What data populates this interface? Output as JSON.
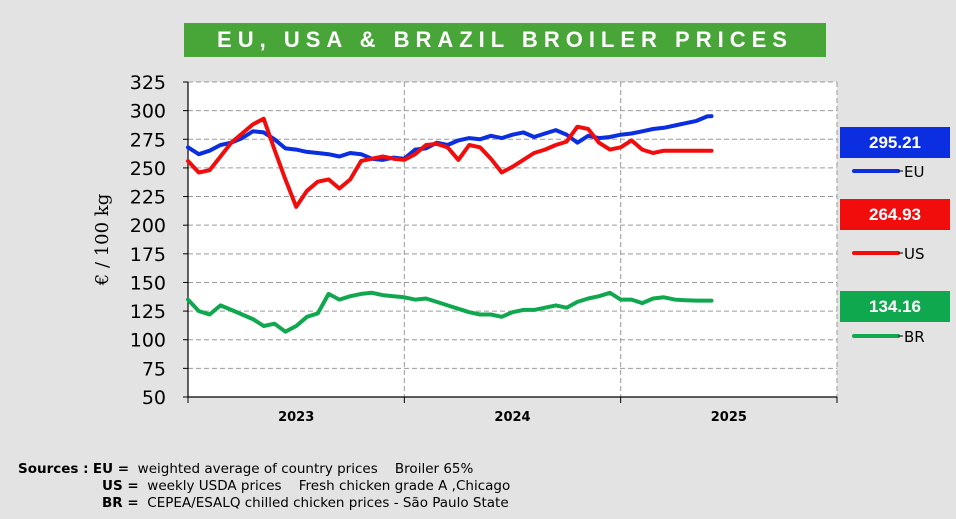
{
  "title": "EU, USA & BRAZIL BROILER PRICES",
  "colors": {
    "eu": "#0a2ee0",
    "us": "#f20d0d",
    "br": "#10a84e",
    "title_bg": "#48a638"
  },
  "badges": [
    {
      "key": "eu",
      "value": "295.21",
      "legend": "EU",
      "color": "#0a2ee0"
    },
    {
      "key": "us",
      "value": "264.93",
      "legend": "US",
      "color": "#f20d0d"
    },
    {
      "key": "br",
      "value": "134.16",
      "legend": "BR",
      "color": "#10a84e"
    }
  ],
  "sources": {
    "label": "Sources :",
    "rows": [
      {
        "key": "EU =",
        "text": "weighted average of country prices    Broiler 65%"
      },
      {
        "key": "US =",
        "text": "weekly USDA prices    Fresh chicken grade A ,Chicago"
      },
      {
        "key": "BR =",
        "text": "CEPEA/ESALQ chilled chicken prices - São Paulo State"
      }
    ]
  },
  "chart_data": {
    "type": "line",
    "ylabel": "€ / 100 kg",
    "ylim": [
      50,
      325
    ],
    "yticks": [
      50,
      75,
      100,
      125,
      150,
      175,
      200,
      225,
      250,
      275,
      300,
      325
    ],
    "xlim": [
      2022.5,
      2025.5
    ],
    "xticks": [
      2023,
      2024,
      2025
    ],
    "xtick_labels": [
      "2023",
      "2024",
      "2025"
    ],
    "year_dividers": [
      2023.5,
      2024.5
    ],
    "grid": true,
    "series": [
      {
        "name": "EU",
        "color": "#0a2ee0",
        "x": [
          2022.5,
          2022.55,
          2022.6,
          2022.65,
          2022.7,
          2022.75,
          2022.8,
          2022.85,
          2022.9,
          2022.95,
          2023.0,
          2023.05,
          2023.1,
          2023.15,
          2023.2,
          2023.25,
          2023.3,
          2023.35,
          2023.4,
          2023.45,
          2023.5,
          2023.55,
          2023.6,
          2023.65,
          2023.7,
          2023.75,
          2023.8,
          2023.85,
          2023.9,
          2023.95,
          2024.0,
          2024.05,
          2024.1,
          2024.15,
          2024.2,
          2024.25,
          2024.3,
          2024.35,
          2024.4,
          2024.45,
          2024.5,
          2024.55,
          2024.6,
          2024.65,
          2024.7,
          2024.75,
          2024.8,
          2024.85,
          2024.9,
          2024.92
        ],
        "y": [
          268,
          262,
          265,
          270,
          272,
          276,
          282,
          281,
          275,
          267,
          266,
          264,
          263,
          262,
          260,
          263,
          262,
          258,
          257,
          259,
          258,
          266,
          267,
          272,
          270,
          274,
          276,
          275,
          278,
          276,
          279,
          281,
          277,
          280,
          283,
          279,
          272,
          278,
          276,
          277,
          279,
          280,
          282,
          284,
          285,
          287,
          289,
          291,
          295,
          295.2
        ]
      },
      {
        "name": "US",
        "color": "#f20d0d",
        "x": [
          2022.5,
          2022.55,
          2022.6,
          2022.65,
          2022.7,
          2022.75,
          2022.8,
          2022.85,
          2022.9,
          2022.95,
          2023.0,
          2023.05,
          2023.1,
          2023.15,
          2023.2,
          2023.25,
          2023.3,
          2023.35,
          2023.4,
          2023.45,
          2023.5,
          2023.55,
          2023.6,
          2023.65,
          2023.7,
          2023.75,
          2023.8,
          2023.85,
          2023.9,
          2023.95,
          2024.0,
          2024.05,
          2024.1,
          2024.15,
          2024.2,
          2024.25,
          2024.3,
          2024.35,
          2024.4,
          2024.45,
          2024.5,
          2024.55,
          2024.6,
          2024.65,
          2024.7,
          2024.75,
          2024.8,
          2024.85,
          2024.9,
          2024.92
        ],
        "y": [
          256,
          246,
          248,
          260,
          272,
          280,
          288,
          293,
          266,
          240,
          216,
          230,
          238,
          240,
          232,
          240,
          256,
          258,
          260,
          258,
          257,
          262,
          270,
          271,
          268,
          257,
          270,
          268,
          258,
          246,
          251,
          257,
          263,
          266,
          270,
          273,
          286,
          284,
          272,
          266,
          268,
          274,
          266,
          263,
          265,
          264.9,
          264.9,
          264.9,
          264.9,
          264.93
        ]
      },
      {
        "name": "BR",
        "color": "#10a84e",
        "x": [
          2022.5,
          2022.55,
          2022.6,
          2022.65,
          2022.7,
          2022.75,
          2022.8,
          2022.85,
          2022.9,
          2022.95,
          2023.0,
          2023.05,
          2023.1,
          2023.15,
          2023.2,
          2023.25,
          2023.3,
          2023.35,
          2023.4,
          2023.45,
          2023.5,
          2023.55,
          2023.6,
          2023.65,
          2023.7,
          2023.75,
          2023.8,
          2023.85,
          2023.9,
          2023.95,
          2024.0,
          2024.05,
          2024.1,
          2024.15,
          2024.2,
          2024.25,
          2024.3,
          2024.35,
          2024.4,
          2024.45,
          2024.5,
          2024.55,
          2024.6,
          2024.65,
          2024.7,
          2024.75,
          2024.8,
          2024.85,
          2024.9,
          2024.92
        ],
        "y": [
          135,
          125,
          122,
          130,
          126,
          122,
          118,
          112,
          114,
          107,
          112,
          120,
          123,
          140,
          135,
          138,
          140,
          141,
          139,
          138,
          137,
          135,
          136,
          133,
          130,
          127,
          124,
          122,
          122,
          120,
          124,
          126,
          126,
          128,
          130,
          128,
          133,
          136,
          138,
          141,
          135,
          135,
          132,
          136,
          137,
          135,
          134.5,
          134.2,
          134.2,
          134.16
        ]
      }
    ]
  }
}
